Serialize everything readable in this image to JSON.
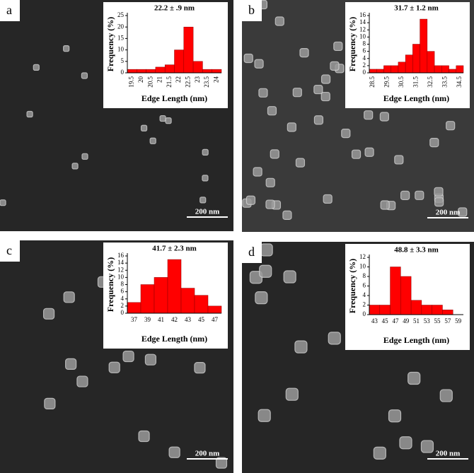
{
  "chart_data": [
    {
      "type": "bar",
      "panel_label": "a",
      "title": "22.2 ± .9 nm",
      "x_label": "Edge Length (nm)",
      "y_label": "Frequency (%)",
      "scale_bar": "200 nm",
      "color": "#ff0000",
      "categories": [
        "19.5",
        "20",
        "20.5",
        "21",
        "21.5",
        "22",
        "22.5",
        "23",
        "23.5",
        "24"
      ],
      "values": [
        1.5,
        1.5,
        1.5,
        2.5,
        3.5,
        10,
        20,
        5,
        1.5,
        1.5
      ],
      "ylim": [
        0,
        25
      ],
      "yticks": [
        0,
        5,
        10,
        15,
        20,
        25
      ]
    },
    {
      "type": "bar",
      "panel_label": "b",
      "title": "31.7 ± 1.2 nm",
      "x_label": "Edge Length (nm)",
      "y_label": "Frequency (%)",
      "scale_bar": "200 nm",
      "color": "#ff0000",
      "categories": [
        "28.5",
        null,
        "29.5",
        null,
        "30.5",
        null,
        "31.5",
        null,
        "32.5",
        null,
        "33.5",
        null,
        "34.5"
      ],
      "values": [
        1,
        1,
        2,
        2,
        3,
        5,
        8,
        15,
        6,
        2,
        2,
        1,
        2
      ],
      "ylim": [
        0,
        16
      ],
      "yticks": [
        0,
        2,
        4,
        6,
        8,
        10,
        12,
        14,
        16
      ]
    },
    {
      "type": "bar",
      "panel_label": "c",
      "title": "41.7 ± 2.3 nm",
      "x_label": "Edge Length (nm)",
      "y_label": "Frequency (%)",
      "scale_bar": "200 nm",
      "color": "#ff0000",
      "categories": [
        "37",
        "39",
        "41",
        "42",
        "43",
        "45",
        "47"
      ],
      "values": [
        3,
        8,
        10,
        15,
        7,
        5,
        2
      ],
      "ylim": [
        0,
        16
      ],
      "yticks": [
        0,
        2,
        4,
        6,
        8,
        10,
        12,
        14,
        16
      ]
    },
    {
      "type": "bar",
      "panel_label": "d",
      "title": "48.8 ± 3.3 nm",
      "x_label": "Edge Length (nm)",
      "y_label": "Frequency (%)",
      "scale_bar": "200 nm",
      "color": "#ff0000",
      "categories": [
        "43",
        "45",
        "47",
        "49",
        "51",
        "53",
        "55",
        "57",
        "59"
      ],
      "values": [
        2,
        2,
        10,
        8,
        3,
        2,
        2,
        1,
        0
      ],
      "ylim": [
        0,
        12
      ],
      "yticks": [
        0,
        2,
        4,
        6,
        8,
        10,
        12
      ]
    }
  ]
}
